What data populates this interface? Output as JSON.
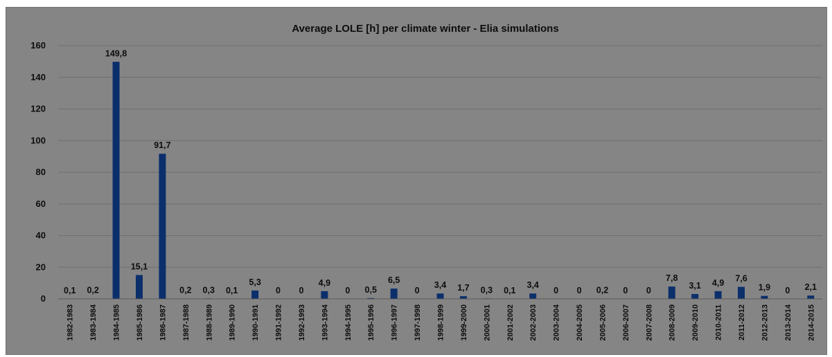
{
  "chart_data": {
    "type": "bar",
    "title": "Average LOLE [h] per climate winter - Elia simulations",
    "xlabel": "",
    "ylabel": "",
    "ylim": [
      0,
      160
    ],
    "yticks": [
      "0",
      "20",
      "40",
      "60",
      "80",
      "100",
      "120",
      "140",
      "160"
    ],
    "grid": true,
    "bar_color": "#0b2f6b",
    "background_color": "#858585",
    "categories": [
      "1982-1983",
      "1983-1984",
      "1984-1985",
      "1985-1986",
      "1986-1987",
      "1987-1988",
      "1988-1989",
      "1989-1990",
      "1990-1991",
      "1991-1992",
      "1992-1993",
      "1993-1994",
      "1994-1995",
      "1995-1996",
      "1996-1997",
      "1997-1998",
      "1998-1999",
      "1999-2000",
      "2000-2001",
      "2001-2002",
      "2002-2003",
      "2003-2004",
      "2004-2005",
      "2005-2006",
      "2006-2007",
      "2007-2008",
      "2008-2009",
      "2009-2010",
      "2010-2011",
      "2011-2012",
      "2012-2013",
      "2013-2014",
      "2014-2015"
    ],
    "values": [
      0.1,
      0.2,
      149.8,
      15.1,
      91.7,
      0.2,
      0.3,
      0.1,
      5.3,
      0,
      0,
      4.9,
      0,
      0.5,
      6.5,
      0,
      3.4,
      1.7,
      0.3,
      0.1,
      3.4,
      0,
      0,
      0.2,
      0,
      0,
      7.8,
      3.1,
      4.9,
      7.6,
      1.9,
      0,
      2.1
    ],
    "data_labels": [
      "0,1",
      "0,2",
      "149,8",
      "15,1",
      "91,7",
      "0,2",
      "0,3",
      "0,1",
      "5,3",
      "0",
      "0",
      "4,9",
      "0",
      "0,5",
      "6,5",
      "0",
      "3,4",
      "1,7",
      "0,3",
      "0,1",
      "3,4",
      "0",
      "0",
      "0,2",
      "0",
      "0",
      "7,8",
      "3,1",
      "4,9",
      "7,6",
      "1,9",
      "0",
      "2,1"
    ]
  }
}
